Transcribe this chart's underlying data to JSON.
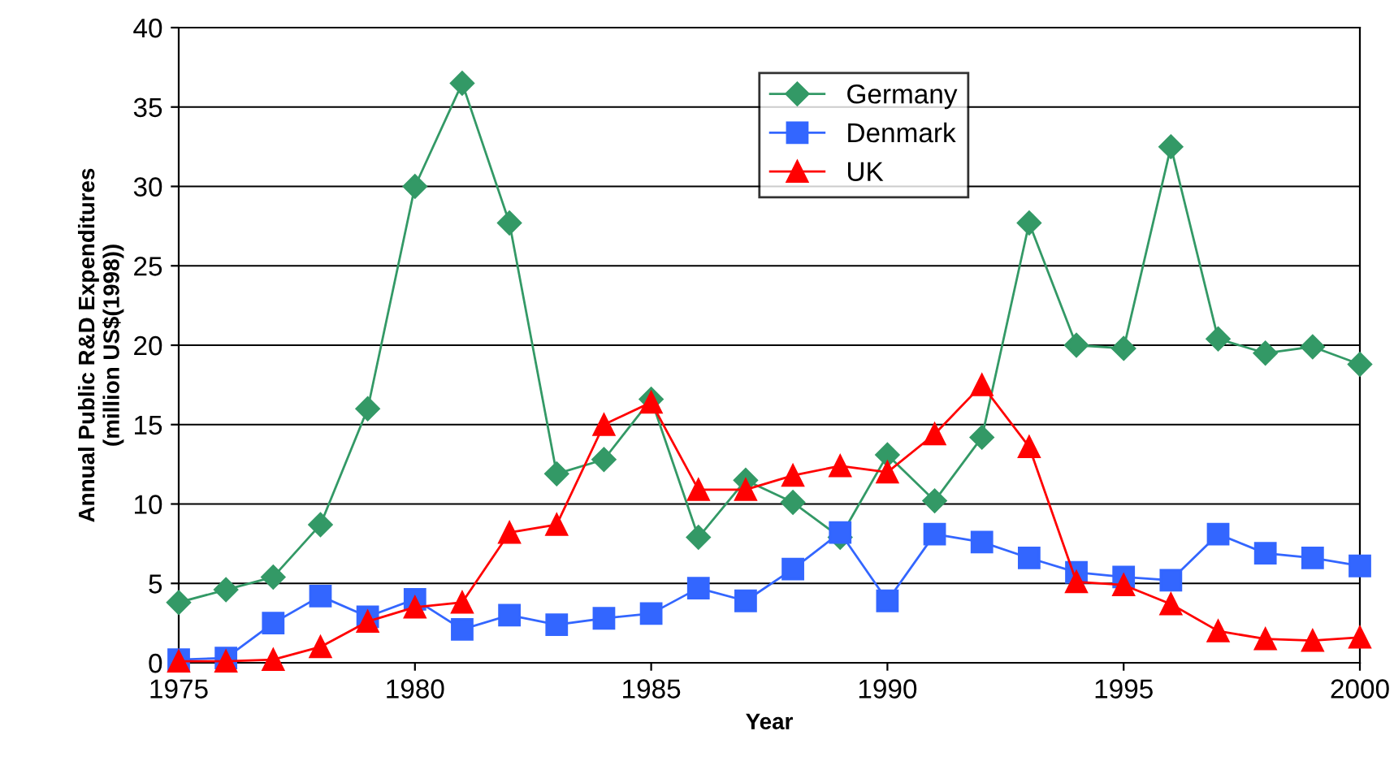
{
  "chart_data": {
    "type": "line",
    "xlabel": "Year",
    "ylabel": "Annual Public R&D Expenditures\n(million US$(1998))",
    "x": [
      1975,
      1976,
      1977,
      1978,
      1979,
      1980,
      1981,
      1982,
      1983,
      1984,
      1985,
      1986,
      1987,
      1988,
      1989,
      1990,
      1991,
      1992,
      1993,
      1994,
      1995,
      1996,
      1997,
      1998,
      1999,
      2000
    ],
    "series": [
      {
        "name": "Germany",
        "color": "#339966",
        "marker": "diamond",
        "values": [
          3.8,
          4.6,
          5.4,
          8.7,
          16.0,
          30.0,
          36.5,
          27.7,
          11.9,
          12.8,
          16.6,
          7.9,
          11.5,
          10.1,
          7.9,
          13.1,
          10.2,
          14.2,
          27.7,
          20.0,
          19.8,
          32.5,
          20.4,
          19.5,
          19.9,
          18.8
        ]
      },
      {
        "name": "Denmark",
        "color": "#3366ff",
        "marker": "square",
        "values": [
          0.2,
          0.3,
          2.5,
          4.2,
          2.9,
          4.0,
          2.1,
          3.0,
          2.4,
          2.8,
          3.1,
          4.7,
          3.9,
          5.9,
          8.2,
          3.9,
          8.1,
          7.6,
          6.6,
          5.7,
          5.4,
          5.2,
          8.1,
          6.9,
          6.6,
          6.1
        ]
      },
      {
        "name": "UK",
        "color": "#ff0000",
        "marker": "triangle",
        "values": [
          0.1,
          0.1,
          0.2,
          1.0,
          2.6,
          3.5,
          3.8,
          8.2,
          8.7,
          15.0,
          16.4,
          10.9,
          10.9,
          11.8,
          12.4,
          12.0,
          14.4,
          17.5,
          13.6,
          5.1,
          4.9,
          3.7,
          2.0,
          1.5,
          1.4,
          1.6
        ]
      }
    ],
    "xlim": [
      1975,
      2000
    ],
    "xticks": [
      1975,
      1980,
      1985,
      1990,
      1995,
      2000
    ],
    "ylim": [
      0,
      40
    ],
    "yticks": [
      0,
      5,
      10,
      15,
      20,
      25,
      30,
      35,
      40
    ],
    "grid": "y",
    "legend": "top",
    "line_style": "solid"
  }
}
